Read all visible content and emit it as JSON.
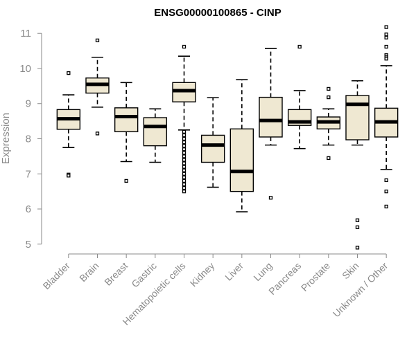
{
  "chart_data": {
    "type": "box",
    "title": "ENSG00000100865 - CINP",
    "xlabel": "",
    "ylabel": "Expression",
    "ylim": [
      4.7,
      11.3
    ],
    "yticks": [
      5,
      6,
      7,
      8,
      9,
      10,
      11
    ],
    "box_fill": "#efe8d2",
    "box_stroke": "#000000",
    "categories": [
      "Bladder",
      "Brain",
      "Breast",
      "Gastric",
      "Hematopoietic cells",
      "Kidney",
      "Liver",
      "Lung",
      "Pancreas",
      "Prostate",
      "Skin",
      "Unknown / Other"
    ],
    "boxes": [
      {
        "name": "Bladder",
        "whisker_low": 7.75,
        "q1": 8.27,
        "median": 8.57,
        "q3": 8.83,
        "whisker_high": 9.25,
        "outliers": [
          9.87,
          6.98,
          6.95
        ]
      },
      {
        "name": "Brain",
        "whisker_low": 8.9,
        "q1": 9.3,
        "median": 9.55,
        "q3": 9.73,
        "whisker_high": 10.32,
        "outliers": [
          10.8,
          8.15
        ]
      },
      {
        "name": "Breast",
        "whisker_low": 7.35,
        "q1": 8.2,
        "median": 8.63,
        "q3": 8.88,
        "whisker_high": 9.6,
        "outliers": [
          6.8
        ]
      },
      {
        "name": "Gastric",
        "whisker_low": 7.33,
        "q1": 7.8,
        "median": 8.35,
        "q3": 8.6,
        "whisker_high": 8.85,
        "outliers": []
      },
      {
        "name": "Hematopoietic cells",
        "whisker_low": 8.25,
        "q1": 9.05,
        "median": 9.37,
        "q3": 9.6,
        "whisker_high": 10.35,
        "outliers": [
          10.62,
          8.2,
          8.1,
          8.0,
          7.9,
          7.8,
          7.7,
          7.6,
          7.5,
          7.4,
          7.3,
          7.2,
          7.1,
          7.0,
          6.9,
          6.8,
          6.7,
          6.6,
          6.5
        ]
      },
      {
        "name": "Kidney",
        "whisker_low": 6.62,
        "q1": 7.33,
        "median": 7.82,
        "q3": 8.1,
        "whisker_high": 9.17,
        "outliers": []
      },
      {
        "name": "Liver",
        "whisker_low": 5.92,
        "q1": 6.5,
        "median": 7.07,
        "q3": 8.28,
        "whisker_high": 9.68,
        "outliers": []
      },
      {
        "name": "Lung",
        "whisker_low": 7.82,
        "q1": 8.05,
        "median": 8.52,
        "q3": 9.18,
        "whisker_high": 10.57,
        "outliers": [
          6.32
        ]
      },
      {
        "name": "Pancreas",
        "whisker_low": 7.72,
        "q1": 8.38,
        "median": 8.48,
        "q3": 8.83,
        "whisker_high": 9.37,
        "outliers": [
          10.62
        ]
      },
      {
        "name": "Prostate",
        "whisker_low": 7.82,
        "q1": 8.28,
        "median": 8.48,
        "q3": 8.62,
        "whisker_high": 8.85,
        "outliers": [
          9.42,
          9.18,
          7.45
        ]
      },
      {
        "name": "Skin",
        "whisker_low": 7.82,
        "q1": 7.97,
        "median": 8.98,
        "q3": 9.23,
        "whisker_high": 9.65,
        "outliers": [
          5.68,
          5.48,
          4.9
        ]
      },
      {
        "name": "Unknown / Other",
        "whisker_low": 7.12,
        "q1": 8.05,
        "median": 8.48,
        "q3": 8.87,
        "whisker_high": 10.08,
        "outliers": [
          11.18,
          10.97,
          10.62,
          10.88,
          10.38,
          10.32,
          10.28,
          6.82,
          6.5,
          6.07
        ]
      }
    ]
  }
}
